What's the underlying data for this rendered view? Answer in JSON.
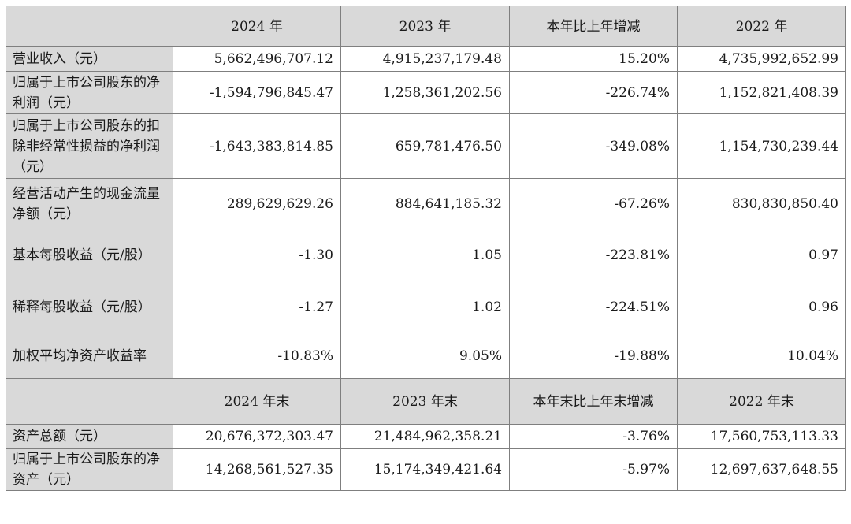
{
  "header1": {
    "blank": "",
    "y2024": "2024 年",
    "y2023": "2023 年",
    "change": "本年比上年增减",
    "y2022": "2022 年"
  },
  "rows1": [
    {
      "label": "营业收入（元）",
      "v2024": "5,662,496,707.12",
      "v2023": "4,915,237,179.48",
      "change": "15.20%",
      "v2022": "4,735,992,652.99"
    },
    {
      "label": "归属于上市公司股东的净利润（元）",
      "v2024": "-1,594,796,845.47",
      "v2023": "1,258,361,202.56",
      "change": "-226.74%",
      "v2022": "1,152,821,408.39"
    },
    {
      "label": "归属于上市公司股东的扣除非经常性损益的净利润（元）",
      "v2024": "-1,643,383,814.85",
      "v2023": "659,781,476.50",
      "change": "-349.08%",
      "v2022": "1,154,730,239.44"
    },
    {
      "label": "经营活动产生的现金流量净额（元）",
      "v2024": "289,629,629.26",
      "v2023": "884,641,185.32",
      "change": "-67.26%",
      "v2022": "830,830,850.40"
    },
    {
      "label": "基本每股收益（元/股）",
      "v2024": "-1.30",
      "v2023": "1.05",
      "change": "-223.81%",
      "v2022": "0.97"
    },
    {
      "label": "稀释每股收益（元/股）",
      "v2024": "-1.27",
      "v2023": "1.02",
      "change": "-224.51%",
      "v2022": "0.96"
    },
    {
      "label": "加权平均净资产收益率",
      "v2024": "-10.83%",
      "v2023": "9.05%",
      "change": "-19.88%",
      "v2022": "10.04%"
    }
  ],
  "header2": {
    "blank": "",
    "y2024": "2024 年末",
    "y2023": "2023 年末",
    "change": "本年末比上年末增减",
    "y2022": "2022 年末"
  },
  "rows2": [
    {
      "label": "资产总额（元）",
      "v2024": "20,676,372,303.47",
      "v2023": "21,484,962,358.21",
      "change": "-3.76%",
      "v2022": "17,560,753,113.33"
    },
    {
      "label": "归属于上市公司股东的净资产（元）",
      "v2024": "14,268,561,527.35",
      "v2023": "15,174,349,421.64",
      "change": "-5.97%",
      "v2022": "12,697,637,648.55"
    }
  ]
}
